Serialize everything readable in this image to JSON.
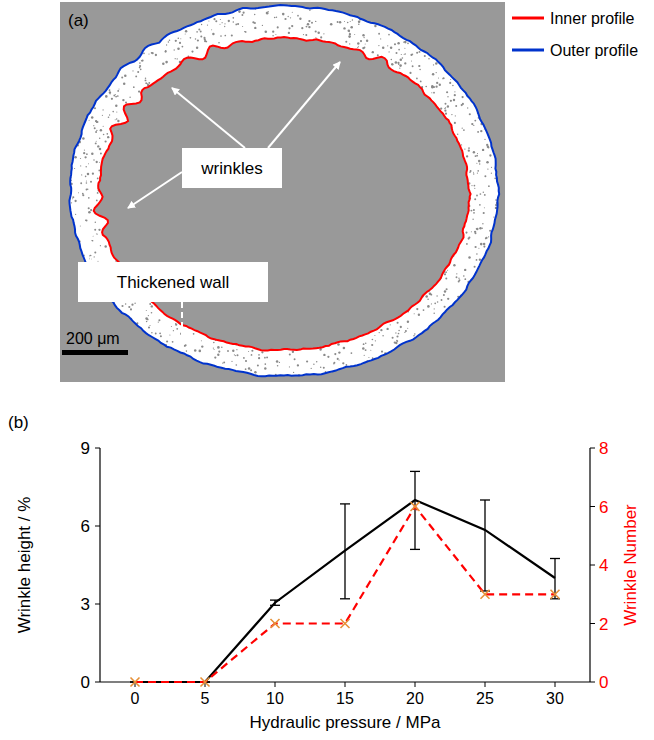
{
  "figure_a": {
    "label": "(a)",
    "profiles": [
      {
        "name": "Inner profile",
        "color": "#ff0000"
      },
      {
        "name": "Outer profile",
        "color": "#0033cc"
      }
    ],
    "annotations": [
      "wrinkles",
      "Thickened wall"
    ],
    "scale_bar": "200 μm"
  },
  "chart_data": {
    "type": "line",
    "label": "(b)",
    "grid": false,
    "x": [
      0,
      5,
      10,
      15,
      20,
      25,
      30
    ],
    "xlim": [
      -2.5,
      32.5
    ],
    "xticks": [
      0,
      5,
      10,
      15,
      20,
      25,
      30
    ],
    "x_label": "Hydraulic pressure / MPa",
    "ylim": [
      0,
      9
    ],
    "yticks": [
      0,
      3,
      6,
      9
    ],
    "y_label": "Wrinkle height / %",
    "y2lim": [
      0,
      8
    ],
    "y2ticks": [
      0,
      2,
      4,
      6,
      8
    ],
    "y2_label": "Wrinkle Number",
    "series": [
      {
        "color": "#000000",
        "line_style": "solid",
        "marker": "none",
        "values": [
          0,
          0,
          3.05,
          5.05,
          7,
          5.85,
          4.0
        ],
        "error_minus": [
          0,
          0,
          0.1,
          1.85,
          1.9,
          2.35,
          0.8
        ],
        "error_plus": [
          0,
          0,
          0.1,
          1.8,
          1.1,
          1.15,
          0.75
        ]
      },
      {
        "axis": "y2",
        "color": "#ff0000",
        "line_style": "dashed",
        "marker": "x",
        "values": [
          0,
          0,
          2,
          2,
          6,
          3,
          3
        ]
      }
    ]
  }
}
